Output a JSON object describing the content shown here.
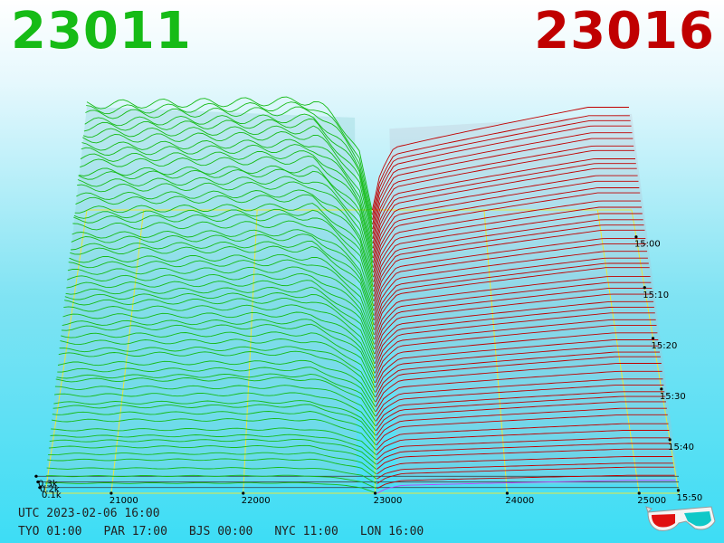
{
  "header": {
    "left_value": "23011",
    "right_value": "23016"
  },
  "colors": {
    "bid": "#16bb16",
    "ask": "#c00000",
    "grid": "#e8e840",
    "ask_latest": "#bb44ff"
  },
  "chart_data": {
    "type": "3d-depth-surface",
    "title": "",
    "x_axis": {
      "ticks": [
        "21000",
        "22000",
        "23000",
        "24000",
        "25000"
      ],
      "range": [
        20500,
        25300
      ]
    },
    "z_axis": {
      "ticks": [
        "0.1k",
        "0.2k",
        "0.3k"
      ],
      "range": [
        0,
        0.4
      ]
    },
    "time_axis": {
      "ticks": [
        "15:00",
        "15:10",
        "15:20",
        "15:30",
        "15:40",
        "15:50"
      ],
      "range": [
        "14:53",
        "15:59"
      ]
    },
    "series": [
      {
        "side": "bid",
        "best_price": 23011
      },
      {
        "side": "ask",
        "best_price": 23016
      }
    ],
    "slice_count": 60
  },
  "footer": {
    "utc": "UTC 2023-02-06 16:00",
    "zones": [
      "TYO 01:00",
      "PAR 17:00",
      "BJS 00:00",
      "NYC 11:00",
      "LON 16:00"
    ]
  },
  "icons": {
    "corner": "3d-glasses-icon"
  }
}
